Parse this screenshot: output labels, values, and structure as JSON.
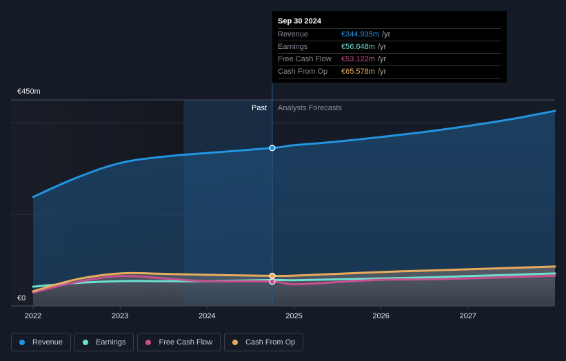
{
  "tooltip": {
    "date": "Sep 30 2024",
    "rows": [
      {
        "label": "Revenue",
        "value": "€344.935m",
        "unit": "/yr",
        "color": "#2394df"
      },
      {
        "label": "Earnings",
        "value": "€56.648m",
        "unit": "/yr",
        "color": "#6ee0cf"
      },
      {
        "label": "Free Cash Flow",
        "value": "€53.122m",
        "unit": "/yr",
        "color": "#c64f8e"
      },
      {
        "label": "Cash From Op",
        "value": "€65.578m",
        "unit": "/yr",
        "color": "#e8ac5c"
      }
    ]
  },
  "legend": [
    {
      "label": "Revenue",
      "color": "#2394df"
    },
    {
      "label": "Earnings",
      "color": "#6ee0cf"
    },
    {
      "label": "Free Cash Flow",
      "color": "#c64f8e"
    },
    {
      "label": "Cash From Op",
      "color": "#e8ac5c"
    }
  ],
  "chart_data": {
    "type": "line",
    "title": "",
    "xlabel": "",
    "ylabel": "",
    "y_unit": "€m",
    "ylim": [
      0,
      450
    ],
    "xlim": [
      2022,
      2028
    ],
    "y_tick_labels": [
      {
        "value": 0,
        "label": "€0"
      },
      {
        "value": 450,
        "label": "€450m"
      }
    ],
    "gridlines": [
      200,
      400
    ],
    "x_tick_labels": [
      "2022",
      "2023",
      "2024",
      "2025",
      "2026",
      "2027"
    ],
    "x_ticks": [
      2022,
      2023,
      2024,
      2025,
      2026,
      2027
    ],
    "divider_x": 2024.75,
    "highlight_start_x": 2023.73,
    "past_label": "Past",
    "forecast_label": "Analysts Forecasts",
    "series": [
      {
        "name": "Revenue",
        "color": "#2394df",
        "x": [
          2022,
          2022.5,
          2023,
          2023.5,
          2024,
          2024.75,
          2025,
          2025.5,
          2026,
          2026.5,
          2027,
          2027.5,
          2028
        ],
        "y": [
          238,
          280,
          312,
          326,
          334,
          345,
          351,
          359,
          369,
          380,
          393,
          408,
          426
        ]
      },
      {
        "name": "Earnings",
        "color": "#6ee0cf",
        "x": [
          2022,
          2022.5,
          2023,
          2023.5,
          2024,
          2024.75,
          2025,
          2025.5,
          2026,
          2026.5,
          2027,
          2027.5,
          2028
        ],
        "y": [
          42,
          50,
          54,
          54,
          54,
          56.6,
          56,
          58,
          60,
          62,
          65,
          68,
          71
        ]
      },
      {
        "name": "Free Cash Flow",
        "color": "#c64f8e",
        "x": [
          2022,
          2022.5,
          2023,
          2023.5,
          2024,
          2024.75,
          2025,
          2025.5,
          2026,
          2026.5,
          2027,
          2027.5,
          2028
        ],
        "y": [
          29,
          52,
          65,
          60,
          54,
          53.1,
          47,
          52,
          57,
          58,
          60,
          63,
          66
        ]
      },
      {
        "name": "Cash From Op",
        "color": "#e8ac5c",
        "x": [
          2022,
          2022.5,
          2023,
          2023.5,
          2024,
          2024.75,
          2025,
          2025.5,
          2026,
          2026.5,
          2027,
          2027.5,
          2028
        ],
        "y": [
          32,
          58,
          71,
          70,
          68,
          65.6,
          66,
          70,
          74,
          77,
          80,
          83,
          86
        ]
      }
    ]
  }
}
